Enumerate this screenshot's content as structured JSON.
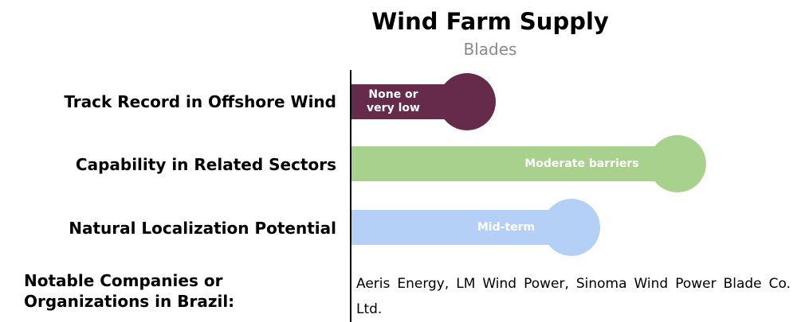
{
  "title": "Wind Farm Supply",
  "subtitle": "Blades",
  "rows": [
    {
      "label": "Track Record in Offshore Wind",
      "level": "None or very low",
      "color": "#662a4a"
    },
    {
      "label": "Capability in Related Sectors",
      "level": "Moderate barriers",
      "color": "#a9d18e"
    },
    {
      "label": "Natural Localization Potential",
      "level": "Mid-term",
      "color": "#b4d0f7"
    }
  ],
  "companies": {
    "label": "Notable Companies or Organizations in Brazil:",
    "text": "Aeris Energy, LM Wind Power, Sinoma Wind Power Blade Co. Ltd."
  }
}
